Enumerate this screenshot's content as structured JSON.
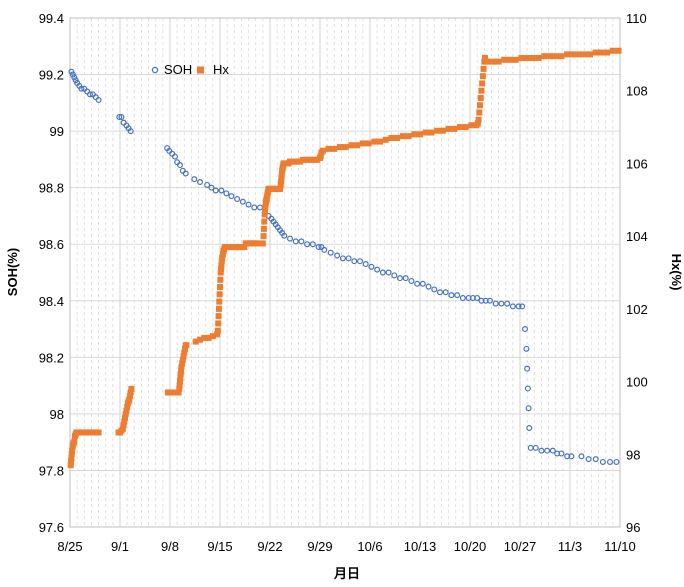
{
  "chart_data": {
    "type": "scatter",
    "x_axis": {
      "label": "月日",
      "ticks": [
        "8/25",
        "9/1",
        "9/8",
        "9/15",
        "9/22",
        "9/29",
        "10/6",
        "10/13",
        "10/20",
        "10/27",
        "11/3",
        "11/10"
      ],
      "tick_days": [
        0,
        7,
        14,
        21,
        28,
        35,
        42,
        49,
        56,
        63,
        70,
        77
      ],
      "minor_grid": "daily"
    },
    "y_left": {
      "label": "SOH(%)",
      "ylim": [
        97.6,
        99.4
      ],
      "ticks": [
        "97.6",
        "97.8",
        "98",
        "98.2",
        "98.4",
        "98.6",
        "98.8",
        "99",
        "99.2",
        "99.4"
      ],
      "tick_values": [
        97.6,
        97.8,
        98.0,
        98.2,
        98.4,
        98.6,
        98.8,
        99.0,
        99.2,
        99.4
      ]
    },
    "y_right": {
      "label": "Hx(%)",
      "ylim": [
        96,
        110
      ],
      "ticks": [
        "96",
        "98",
        "100",
        "102",
        "104",
        "106",
        "108",
        "110"
      ],
      "tick_values": [
        96,
        98,
        100,
        102,
        104,
        106,
        108,
        110
      ]
    },
    "grid": true,
    "legend": {
      "position": "top-left",
      "entries": [
        "SOH",
        "Hx"
      ]
    },
    "series": [
      {
        "name": "SOH",
        "axis": "left",
        "color": "#4472C4",
        "marker": "circle-open",
        "x": [
          0.2,
          0.4,
          0.6,
          0.8,
          1.0,
          1.3,
          1.6,
          2.0,
          2.4,
          2.8,
          3.2,
          3.6,
          4.0,
          6.9,
          7.2,
          7.5,
          7.9,
          8.2,
          8.5,
          13.6,
          13.9,
          14.3,
          14.7,
          15.0,
          15.4,
          15.8,
          16.2,
          17.4,
          18.2,
          19.2,
          19.8,
          20.4,
          21.2,
          21.9,
          22.6,
          23.4,
          24.2,
          25.0,
          25.8,
          26.6,
          27.3,
          27.8,
          28.2,
          28.5,
          28.8,
          29.1,
          29.4,
          29.7,
          30.0,
          30.8,
          31.6,
          32.4,
          33.2,
          34.0,
          34.8,
          35.2,
          35.6,
          36.5,
          37.4,
          38.2,
          39.0,
          39.8,
          40.6,
          41.4,
          42.2,
          43.0,
          43.8,
          44.6,
          45.4,
          46.2,
          47.0,
          47.8,
          48.6,
          49.4,
          50.2,
          51.0,
          51.8,
          52.6,
          53.4,
          54.2,
          55.0,
          55.8,
          56.4,
          57.0,
          57.6,
          58.2,
          58.8,
          59.6,
          60.4,
          61.2,
          62.0,
          62.8,
          63.3,
          63.7,
          63.9,
          64.0,
          64.1,
          64.2,
          64.3,
          64.5,
          65.2,
          66.0,
          66.8,
          67.6,
          68.2,
          68.8,
          69.6,
          70.2,
          71.6,
          72.6,
          73.6,
          74.6,
          75.6,
          76.5
        ],
        "y": [
          99.21,
          99.2,
          99.19,
          99.18,
          99.17,
          99.16,
          99.15,
          99.15,
          99.14,
          99.13,
          99.13,
          99.12,
          99.11,
          99.05,
          99.05,
          99.03,
          99.02,
          99.01,
          99.0,
          98.94,
          98.93,
          98.92,
          98.91,
          98.89,
          98.88,
          98.86,
          98.85,
          98.83,
          98.82,
          98.81,
          98.8,
          98.79,
          98.79,
          98.78,
          98.77,
          98.76,
          98.75,
          98.74,
          98.73,
          98.73,
          98.72,
          98.7,
          98.69,
          98.68,
          98.67,
          98.66,
          98.65,
          98.64,
          98.63,
          98.62,
          98.61,
          98.61,
          98.6,
          98.6,
          98.59,
          98.59,
          98.58,
          98.57,
          98.56,
          98.55,
          98.55,
          98.54,
          98.54,
          98.53,
          98.52,
          98.51,
          98.5,
          98.5,
          98.49,
          98.48,
          98.48,
          98.47,
          98.46,
          98.46,
          98.45,
          98.44,
          98.43,
          98.43,
          98.42,
          98.42,
          98.41,
          98.41,
          98.41,
          98.41,
          98.4,
          98.4,
          98.4,
          98.39,
          98.39,
          98.39,
          98.38,
          98.38,
          98.38,
          98.3,
          98.23,
          98.16,
          98.09,
          98.02,
          97.95,
          97.88,
          97.88,
          97.87,
          97.87,
          97.87,
          97.86,
          97.86,
          97.85,
          97.85,
          97.85,
          97.84,
          97.84,
          97.83,
          97.83,
          97.83
        ]
      },
      {
        "name": "Hx",
        "axis": "right",
        "color": "#ED7D31",
        "marker": "square",
        "x": [
          0.1,
          0.15,
          0.2,
          0.25,
          0.3,
          0.35,
          0.4,
          0.5,
          0.6,
          0.7,
          0.8,
          0.9,
          1.0,
          1.2,
          1.4,
          1.6,
          1.8,
          2.0,
          2.2,
          2.4,
          2.6,
          2.8,
          3.0,
          3.2,
          3.4,
          3.6,
          3.8,
          4.0,
          6.8,
          7.0,
          7.2,
          7.4,
          7.5,
          7.6,
          7.7,
          7.8,
          7.9,
          8.0,
          8.1,
          8.2,
          8.3,
          8.4,
          8.5,
          8.6,
          13.7,
          14.0,
          14.3,
          14.6,
          14.9,
          15.2,
          15.3,
          15.35,
          15.4,
          15.45,
          15.5,
          15.55,
          15.6,
          15.7,
          15.8,
          15.9,
          16.0,
          16.1,
          16.2,
          16.3,
          17.6,
          18.2,
          18.8,
          19.4,
          20.0,
          20.6,
          20.7,
          20.75,
          20.8,
          20.85,
          20.9,
          20.95,
          21.0,
          21.05,
          21.1,
          21.15,
          21.2,
          21.25,
          21.3,
          21.4,
          21.5,
          21.6,
          21.7,
          21.8,
          22.0,
          22.2,
          22.4,
          22.6,
          22.8,
          23.0,
          23.2,
          23.4,
          23.6,
          23.8,
          24.0,
          24.2,
          24.4,
          24.6,
          24.8,
          25.0,
          25.2,
          25.4,
          25.6,
          25.8,
          26.0,
          26.2,
          27.0,
          27.1,
          27.15,
          27.2,
          27.25,
          27.3,
          27.35,
          27.4,
          27.45,
          27.5,
          27.55,
          27.6,
          27.65,
          27.7,
          27.75,
          27.8,
          27.9,
          28.0,
          28.2,
          28.4,
          28.6,
          28.8,
          29.0,
          29.2,
          29.4,
          29.5,
          29.55,
          29.6,
          29.65,
          29.7,
          29.75,
          29.8,
          29.85,
          29.9,
          30.0,
          30.2,
          30.4,
          30.6,
          30.8,
          31.0,
          31.4,
          31.8,
          32.2,
          32.6,
          33.0,
          33.4,
          33.8,
          34.2,
          34.6,
          35.0,
          35.1,
          35.2,
          35.4,
          36.2,
          37.0,
          37.8,
          38.6,
          39.4,
          40.2,
          41.0,
          41.8,
          42.6,
          43.4,
          44.2,
          45.0,
          45.8,
          46.6,
          47.4,
          48.2,
          49.0,
          49.8,
          50.6,
          51.4,
          52.2,
          53.0,
          53.8,
          54.6,
          55.4,
          56.2,
          56.9,
          57.1,
          57.2,
          57.3,
          57.4,
          57.5,
          57.6,
          57.7,
          57.8,
          57.9,
          58.0,
          58.1,
          58.4,
          59.2,
          60.0,
          60.8,
          61.6,
          62.4,
          63.2,
          64.0,
          64.8,
          65.6,
          66.4,
          67.2,
          68.0,
          68.8,
          69.6,
          70.4,
          71.2,
          72.0,
          72.8,
          73.6,
          74.4,
          75.2,
          76.0,
          76.8
        ],
        "y": [
          97.7,
          97.8,
          97.9,
          98.0,
          98.1,
          98.2,
          98.25,
          98.3,
          98.35,
          98.5,
          98.55,
          98.6,
          98.6,
          98.6,
          98.6,
          98.6,
          98.6,
          98.6,
          98.6,
          98.6,
          98.6,
          98.6,
          98.6,
          98.6,
          98.6,
          98.6,
          98.6,
          98.6,
          98.6,
          98.6,
          98.65,
          98.7,
          98.8,
          98.9,
          99.0,
          99.1,
          99.2,
          99.3,
          99.4,
          99.45,
          99.5,
          99.6,
          99.7,
          99.8,
          99.7,
          99.7,
          99.7,
          99.7,
          99.7,
          99.7,
          99.8,
          99.9,
          100.0,
          100.1,
          100.2,
          100.3,
          100.4,
          100.5,
          100.6,
          100.7,
          100.8,
          100.9,
          101.0,
          101.0,
          101.1,
          101.15,
          101.2,
          101.2,
          101.25,
          101.3,
          101.4,
          101.6,
          101.8,
          102.0,
          102.2,
          102.4,
          102.6,
          102.8,
          103.0,
          103.1,
          103.2,
          103.3,
          103.4,
          103.5,
          103.6,
          103.65,
          103.7,
          103.7,
          103.7,
          103.7,
          103.7,
          103.7,
          103.7,
          103.7,
          103.7,
          103.7,
          103.7,
          103.7,
          103.7,
          103.7,
          103.7,
          103.8,
          103.8,
          103.8,
          103.8,
          103.8,
          103.8,
          103.8,
          103.8,
          103.8,
          103.8,
          104.0,
          104.2,
          104.4,
          104.6,
          104.7,
          104.8,
          104.9,
          104.95,
          105.0,
          105.05,
          105.1,
          105.15,
          105.2,
          105.25,
          105.3,
          105.3,
          105.3,
          105.3,
          105.3,
          105.3,
          105.3,
          105.3,
          105.3,
          105.3,
          105.4,
          105.5,
          105.6,
          105.7,
          105.8,
          105.85,
          105.9,
          105.95,
          106.0,
          106.0,
          106.0,
          106.0,
          106.0,
          106.05,
          106.05,
          106.05,
          106.05,
          106.05,
          106.1,
          106.1,
          106.1,
          106.1,
          106.1,
          106.1,
          106.15,
          106.2,
          106.3,
          106.35,
          106.4,
          106.4,
          106.45,
          106.45,
          106.5,
          106.5,
          106.55,
          106.55,
          106.6,
          106.6,
          106.65,
          106.7,
          106.7,
          106.75,
          106.75,
          106.8,
          106.8,
          106.85,
          106.85,
          106.9,
          106.9,
          106.95,
          106.95,
          107.0,
          107.0,
          107.05,
          107.05,
          107.1,
          107.2,
          107.4,
          107.6,
          107.8,
          108.0,
          108.2,
          108.4,
          108.6,
          108.8,
          108.9,
          108.8,
          108.8,
          108.8,
          108.85,
          108.85,
          108.85,
          108.9,
          108.9,
          108.9,
          108.9,
          108.95,
          108.95,
          108.95,
          108.95,
          109.0,
          109.0,
          109.0,
          109.0,
          109.0,
          109.05,
          109.05,
          109.05,
          109.1,
          109.1
        ]
      }
    ]
  }
}
